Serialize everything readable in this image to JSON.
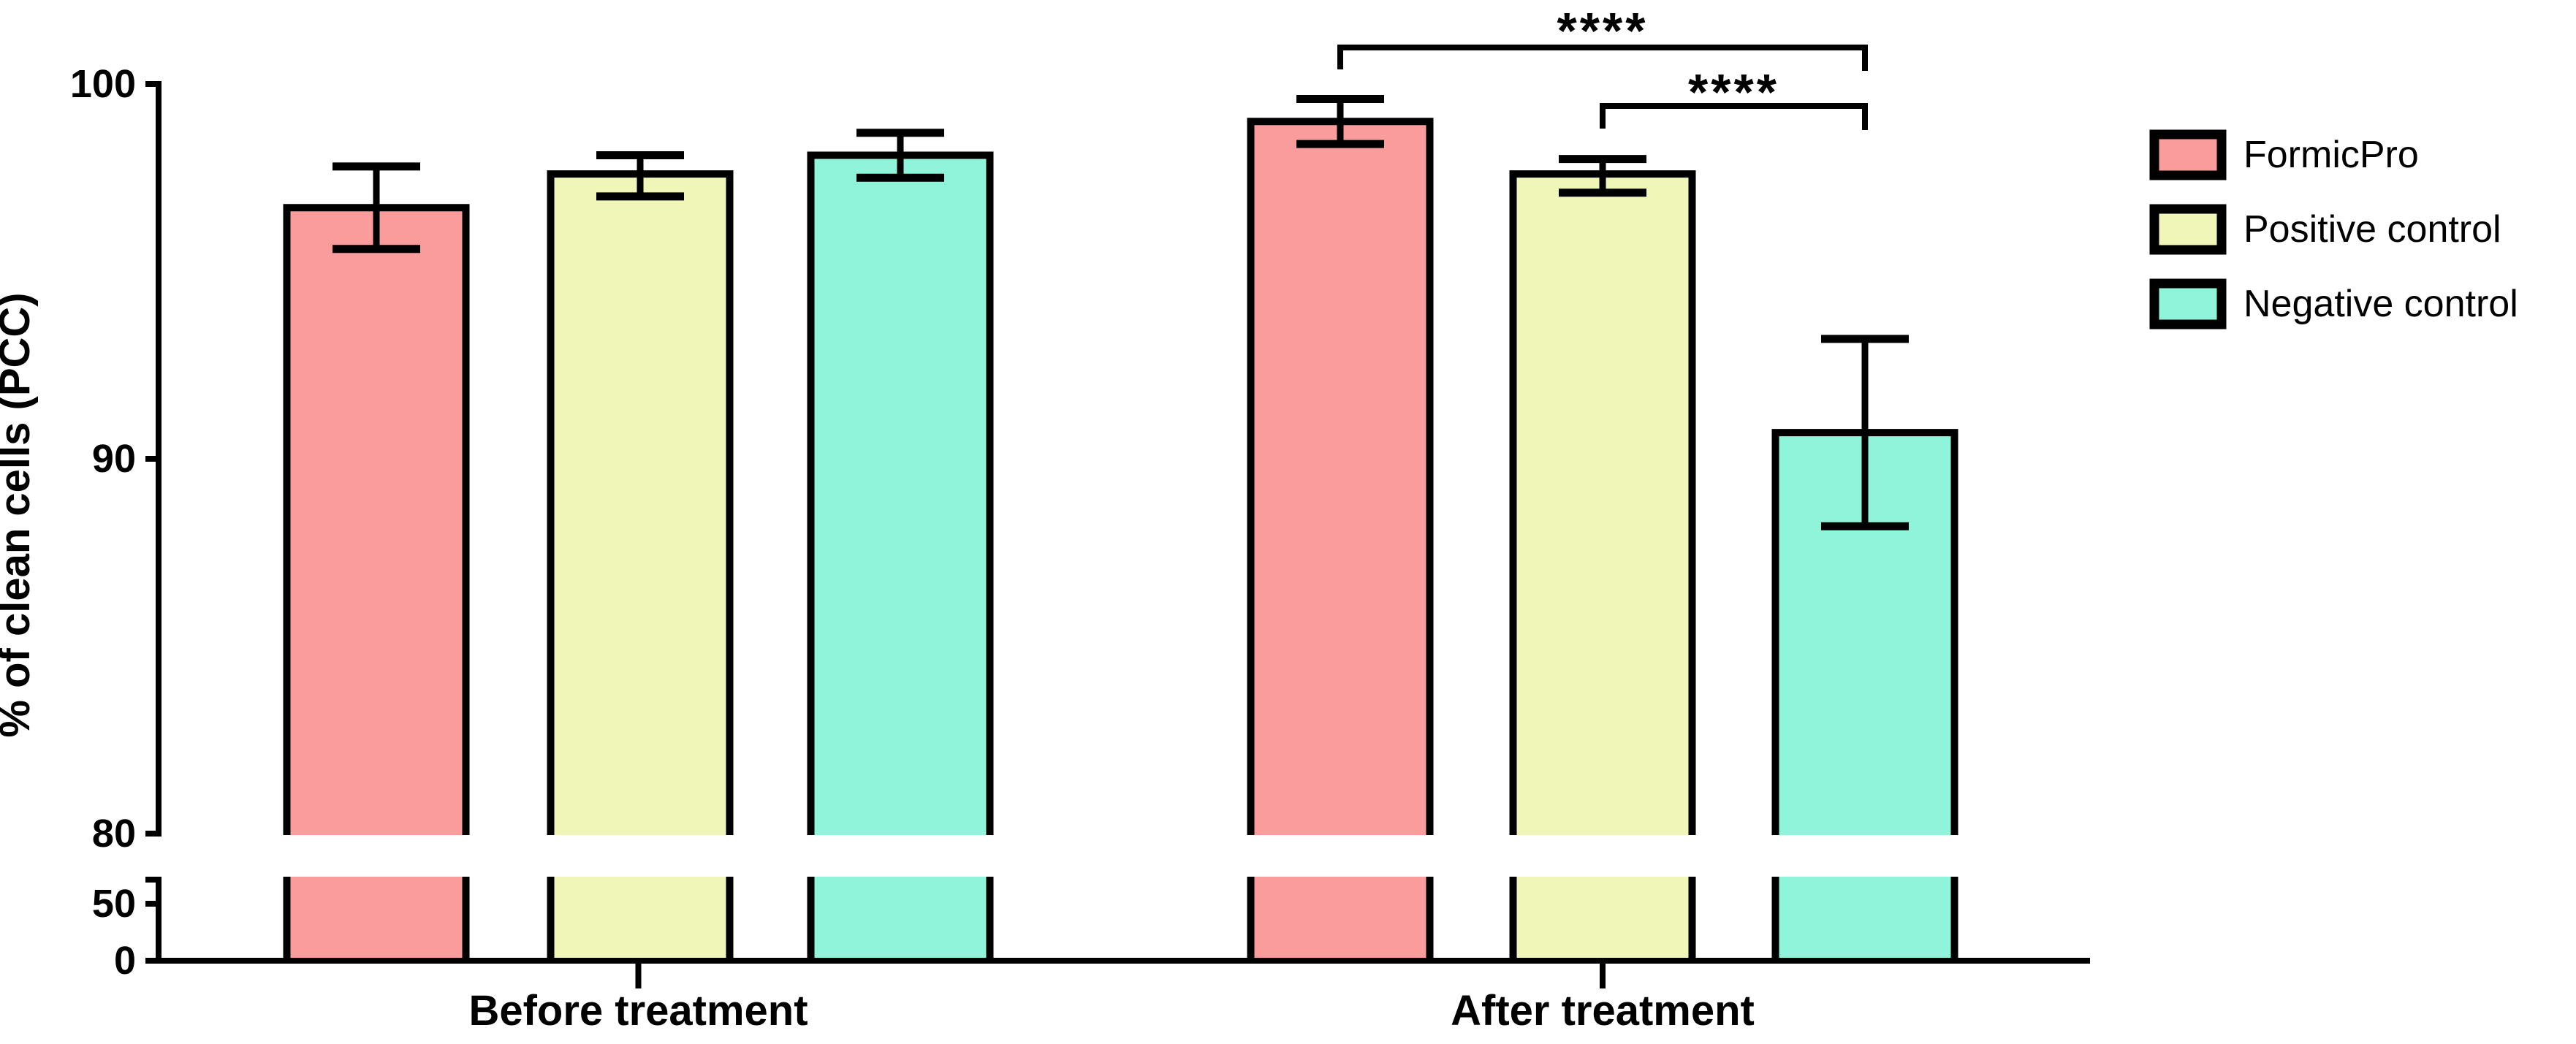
{
  "chart_data": {
    "type": "bar",
    "title": "",
    "ylabel": "% of clean cells (PCC)",
    "xlabel": "",
    "grid": false,
    "error_bar_style": "mean ± SD, caps above and below",
    "categories": [
      "Before treatment",
      "After treatment"
    ],
    "series": [
      {
        "name": "FormicPro",
        "color": "#FB9C9C",
        "values": [
          96.7,
          99.0
        ],
        "error_high": [
          97.8,
          99.6
        ],
        "error_low": [
          95.6,
          98.4
        ]
      },
      {
        "name": "Positive control",
        "color": "#F0F5B8",
        "values": [
          97.6,
          97.6
        ],
        "error_high": [
          98.1,
          98.0
        ],
        "error_low": [
          97.0,
          97.1
        ]
      },
      {
        "name": "Negative control",
        "color": "#8FF4D9",
        "values": [
          98.1,
          90.7
        ],
        "error_high": [
          98.7,
          93.2
        ],
        "error_low": [
          97.5,
          88.2
        ]
      }
    ],
    "y_axis": {
      "broken": true,
      "upper_segment": {
        "range": [
          80,
          100
        ],
        "ticks": [
          100,
          90,
          80
        ]
      },
      "lower_segment": {
        "range": [
          0,
          62
        ],
        "ticks": [
          50,
          0
        ]
      }
    },
    "legend": {
      "position": "right"
    },
    "annotations": [
      {
        "label": "****",
        "group": "After treatment",
        "between": [
          "FormicPro",
          "Negative control"
        ]
      },
      {
        "label": "****",
        "group": "After treatment",
        "between": [
          "Positive control",
          "Negative control"
        ]
      }
    ],
    "colors": {
      "axis": "#000000",
      "background": "#ffffff"
    }
  }
}
